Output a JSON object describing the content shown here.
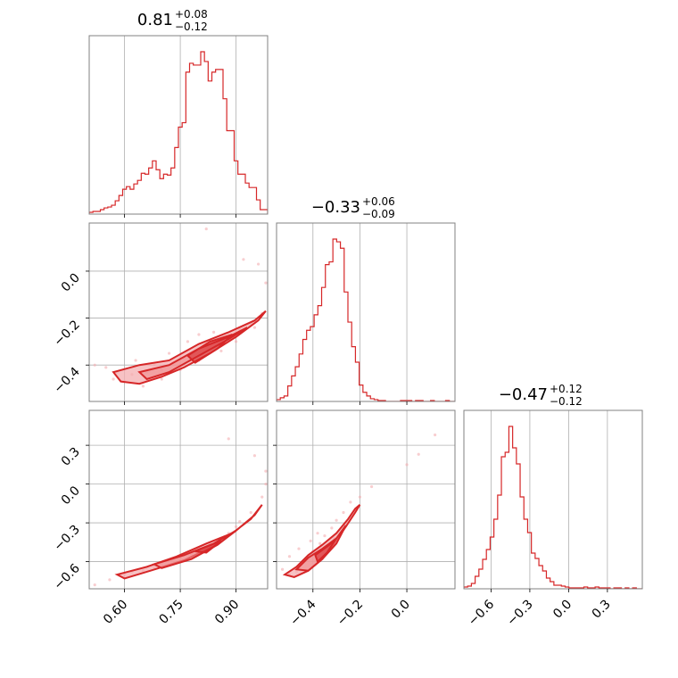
{
  "colors": {
    "accent": "#d62728",
    "fill": "#f4aeb0",
    "grid": "#b0b0b0",
    "frame": "#808080"
  },
  "chart_data": {
    "type": "corner",
    "grid": true,
    "parameters": [
      {
        "title": {
          "median": "0.81",
          "upper": "+0.08",
          "lower": "−0.12"
        },
        "range": [
          0.505,
          0.985
        ],
        "ticks": [
          0.6,
          0.75,
          0.9
        ],
        "tick_labels": [
          "0.60",
          "0.75",
          "0.90"
        ],
        "hist": {
          "bins": [
            0.505,
            0.515,
            0.525,
            0.535,
            0.545,
            0.555,
            0.565,
            0.575,
            0.585,
            0.595,
            0.605,
            0.615,
            0.625,
            0.635,
            0.645,
            0.655,
            0.665,
            0.675,
            0.685,
            0.695,
            0.705,
            0.715,
            0.725,
            0.735,
            0.745,
            0.755,
            0.765,
            0.775,
            0.785,
            0.795,
            0.805,
            0.815,
            0.825,
            0.835,
            0.845,
            0.855,
            0.865,
            0.875,
            0.885,
            0.895,
            0.905,
            0.915,
            0.925,
            0.935,
            0.945,
            0.955,
            0.965,
            0.975,
            0.985
          ],
          "counts": [
            2,
            3,
            3,
            5,
            7,
            8,
            10,
            15,
            21,
            28,
            31,
            28,
            34,
            38,
            46,
            45,
            52,
            60,
            50,
            40,
            45,
            44,
            52,
            75,
            98,
            103,
            160,
            170,
            168,
            168,
            183,
            172,
            150,
            160,
            163,
            163,
            130,
            94,
            94,
            60,
            45,
            45,
            35,
            30,
            30,
            16,
            5,
            5
          ]
        }
      },
      {
        "title": {
          "median": "−0.33",
          "upper": "+0.06",
          "lower": "−0.09"
        },
        "range": [
          -0.555,
          0.205
        ],
        "ticks": [
          -0.4,
          -0.2,
          0.0
        ],
        "tick_labels": [
          "−0.4",
          "−0.2",
          "0.0"
        ],
        "hist": {
          "bins": [
            -0.555,
            -0.539,
            -0.523,
            -0.507,
            -0.491,
            -0.475,
            -0.459,
            -0.443,
            -0.427,
            -0.411,
            -0.395,
            -0.379,
            -0.363,
            -0.347,
            -0.331,
            -0.315,
            -0.299,
            -0.283,
            -0.267,
            -0.251,
            -0.235,
            -0.219,
            -0.203,
            -0.187,
            -0.171,
            -0.155,
            -0.139,
            -0.123,
            -0.107,
            -0.091,
            -0.075,
            -0.059,
            -0.043,
            -0.027,
            -0.011,
            0.005,
            0.021,
            0.037,
            0.053,
            0.069,
            0.085,
            0.101,
            0.117,
            0.133,
            0.149,
            0.165,
            0.181,
            0.205
          ],
          "counts": [
            2,
            4,
            6,
            17,
            28,
            38,
            52,
            68,
            78,
            82,
            95,
            105,
            125,
            150,
            153,
            178,
            175,
            168,
            120,
            87,
            60,
            43,
            18,
            10,
            6,
            3,
            2,
            1,
            1,
            0,
            0,
            0,
            0,
            1,
            1,
            1,
            0,
            1,
            1,
            0,
            0,
            1,
            0,
            0,
            0,
            1,
            0
          ]
        }
      },
      {
        "title": {
          "median": "−0.47",
          "upper": "+0.12",
          "lower": "−0.12"
        },
        "range": [
          -0.81,
          0.57
        ],
        "ticks": [
          -0.6,
          -0.3,
          0.0,
          0.3
        ],
        "tick_labels": [
          "−0.6",
          "−0.3",
          "0.0",
          "0.3"
        ],
        "hist": {
          "bins": [
            -0.81,
            -0.781,
            -0.752,
            -0.723,
            -0.694,
            -0.665,
            -0.636,
            -0.607,
            -0.578,
            -0.549,
            -0.52,
            -0.491,
            -0.462,
            -0.433,
            -0.404,
            -0.375,
            -0.346,
            -0.317,
            -0.288,
            -0.259,
            -0.23,
            -0.201,
            -0.172,
            -0.143,
            -0.114,
            -0.085,
            -0.056,
            -0.027,
            0.002,
            0.031,
            0.06,
            0.089,
            0.118,
            0.147,
            0.176,
            0.205,
            0.234,
            0.263,
            0.292,
            0.321,
            0.35,
            0.379,
            0.408,
            0.437,
            0.466,
            0.495,
            0.524,
            0.57
          ],
          "counts": [
            2,
            3,
            6,
            14,
            22,
            33,
            44,
            58,
            78,
            105,
            148,
            153,
            182,
            158,
            140,
            103,
            78,
            63,
            40,
            34,
            26,
            20,
            12,
            8,
            4,
            4,
            3,
            2,
            1,
            1,
            1,
            1,
            2,
            1,
            1,
            2,
            1,
            1,
            1,
            0,
            1,
            1,
            0,
            1,
            0,
            1,
            0
          ]
        }
      }
    ],
    "pairs": [
      {
        "row": 1,
        "col": 0,
        "points": [
          [
            0.52,
            -0.4
          ],
          [
            0.55,
            -0.41
          ],
          [
            0.58,
            -0.43
          ],
          [
            0.62,
            -0.44
          ],
          [
            0.66,
            -0.43
          ],
          [
            0.7,
            -0.42
          ],
          [
            0.73,
            -0.39
          ],
          [
            0.76,
            -0.37
          ],
          [
            0.79,
            -0.34
          ],
          [
            0.82,
            -0.32
          ],
          [
            0.85,
            -0.3
          ],
          [
            0.88,
            -0.28
          ],
          [
            0.91,
            -0.25
          ],
          [
            0.94,
            -0.22
          ],
          [
            0.97,
            -0.18
          ],
          [
            0.6,
            -0.47
          ],
          [
            0.65,
            -0.49
          ],
          [
            0.7,
            -0.46
          ],
          [
            0.75,
            -0.42
          ],
          [
            0.8,
            -0.38
          ],
          [
            0.86,
            -0.34
          ],
          [
            0.9,
            -0.3
          ],
          [
            0.95,
            -0.24
          ],
          [
            0.8,
            -0.27
          ],
          [
            0.84,
            -0.26
          ],
          [
            0.77,
            -0.3
          ],
          [
            0.72,
            -0.35
          ],
          [
            0.68,
            -0.4
          ],
          [
            0.63,
            -0.38
          ],
          [
            0.57,
            -0.46
          ],
          [
            0.92,
            0.05
          ],
          [
            0.96,
            0.03
          ],
          [
            0.82,
            0.18
          ],
          [
            0.98,
            -0.05
          ]
        ],
        "contours": [
          [
            [
              0.57,
              -0.43
            ],
            [
              0.64,
              -0.4
            ],
            [
              0.72,
              -0.38
            ],
            [
              0.8,
              -0.31
            ],
            [
              0.88,
              -0.26
            ],
            [
              0.95,
              -0.21
            ],
            [
              0.98,
              -0.17
            ],
            [
              0.96,
              -0.21
            ],
            [
              0.9,
              -0.28
            ],
            [
              0.83,
              -0.35
            ],
            [
              0.76,
              -0.41
            ],
            [
              0.7,
              -0.45
            ],
            [
              0.64,
              -0.48
            ],
            [
              0.59,
              -0.47
            ]
          ],
          [
            [
              0.64,
              -0.43
            ],
            [
              0.72,
              -0.4
            ],
            [
              0.8,
              -0.33
            ],
            [
              0.88,
              -0.28
            ],
            [
              0.93,
              -0.24
            ],
            [
              0.88,
              -0.29
            ],
            [
              0.8,
              -0.36
            ],
            [
              0.72,
              -0.43
            ],
            [
              0.66,
              -0.46
            ]
          ],
          [
            [
              0.77,
              -0.36
            ],
            [
              0.83,
              -0.3
            ],
            [
              0.89,
              -0.27
            ],
            [
              0.85,
              -0.33
            ],
            [
              0.79,
              -0.39
            ]
          ]
        ]
      },
      {
        "row": 2,
        "col": 0,
        "points": [
          [
            0.52,
            -0.78
          ],
          [
            0.56,
            -0.74
          ],
          [
            0.6,
            -0.7
          ],
          [
            0.65,
            -0.67
          ],
          [
            0.7,
            -0.62
          ],
          [
            0.75,
            -0.57
          ],
          [
            0.8,
            -0.5
          ],
          [
            0.85,
            -0.43
          ],
          [
            0.9,
            -0.33
          ],
          [
            0.94,
            -0.22
          ],
          [
            0.97,
            -0.1
          ],
          [
            0.98,
            0.0
          ],
          [
            0.62,
            -0.68
          ],
          [
            0.68,
            -0.64
          ],
          [
            0.73,
            -0.59
          ],
          [
            0.78,
            -0.54
          ],
          [
            0.83,
            -0.46
          ],
          [
            0.88,
            -0.38
          ],
          [
            0.91,
            -0.29
          ],
          [
            0.95,
            0.22
          ],
          [
            0.88,
            0.35
          ],
          [
            0.98,
            0.1
          ]
        ],
        "contours": [
          [
            [
              0.58,
              -0.7
            ],
            [
              0.66,
              -0.64
            ],
            [
              0.74,
              -0.56
            ],
            [
              0.82,
              -0.46
            ],
            [
              0.89,
              -0.38
            ],
            [
              0.94,
              -0.27
            ],
            [
              0.97,
              -0.16
            ],
            [
              0.95,
              -0.24
            ],
            [
              0.9,
              -0.36
            ],
            [
              0.84,
              -0.48
            ],
            [
              0.76,
              -0.59
            ],
            [
              0.67,
              -0.67
            ],
            [
              0.6,
              -0.73
            ]
          ],
          [
            [
              0.68,
              -0.62
            ],
            [
              0.76,
              -0.55
            ],
            [
              0.84,
              -0.46
            ],
            [
              0.9,
              -0.36
            ],
            [
              0.85,
              -0.47
            ],
            [
              0.78,
              -0.58
            ],
            [
              0.7,
              -0.65
            ]
          ],
          [
            [
              0.79,
              -0.52
            ],
            [
              0.86,
              -0.44
            ],
            [
              0.82,
              -0.53
            ]
          ]
        ]
      },
      {
        "row": 2,
        "col": 1,
        "points": [
          [
            -0.53,
            -0.66
          ],
          [
            -0.5,
            -0.7
          ],
          [
            -0.47,
            -0.68
          ],
          [
            -0.45,
            -0.62
          ],
          [
            -0.42,
            -0.58
          ],
          [
            -0.4,
            -0.52
          ],
          [
            -0.37,
            -0.46
          ],
          [
            -0.35,
            -0.4
          ],
          [
            -0.32,
            -0.34
          ],
          [
            -0.3,
            -0.28
          ],
          [
            -0.27,
            -0.22
          ],
          [
            -0.24,
            -0.14
          ],
          [
            -0.2,
            -0.1
          ],
          [
            -0.15,
            -0.02
          ],
          [
            -0.5,
            -0.56
          ],
          [
            -0.46,
            -0.5
          ],
          [
            -0.41,
            -0.44
          ],
          [
            -0.38,
            -0.38
          ],
          [
            -0.34,
            -0.48
          ],
          [
            -0.31,
            -0.42
          ],
          [
            0.0,
            0.15
          ],
          [
            0.05,
            0.23
          ],
          [
            0.12,
            0.38
          ]
        ],
        "contours": [
          [
            [
              -0.52,
              -0.7
            ],
            [
              -0.47,
              -0.64
            ],
            [
              -0.42,
              -0.55
            ],
            [
              -0.36,
              -0.47
            ],
            [
              -0.3,
              -0.38
            ],
            [
              -0.25,
              -0.27
            ],
            [
              -0.22,
              -0.19
            ],
            [
              -0.2,
              -0.16
            ],
            [
              -0.22,
              -0.22
            ],
            [
              -0.26,
              -0.33
            ],
            [
              -0.31,
              -0.46
            ],
            [
              -0.36,
              -0.58
            ],
            [
              -0.42,
              -0.67
            ],
            [
              -0.48,
              -0.72
            ]
          ],
          [
            [
              -0.47,
              -0.66
            ],
            [
              -0.42,
              -0.57
            ],
            [
              -0.36,
              -0.5
            ],
            [
              -0.3,
              -0.42
            ],
            [
              -0.26,
              -0.32
            ],
            [
              -0.3,
              -0.46
            ],
            [
              -0.36,
              -0.58
            ],
            [
              -0.42,
              -0.67
            ]
          ],
          [
            [
              -0.39,
              -0.55
            ],
            [
              -0.33,
              -0.47
            ],
            [
              -0.3,
              -0.42
            ],
            [
              -0.34,
              -0.53
            ],
            [
              -0.38,
              -0.6
            ]
          ]
        ]
      }
    ]
  }
}
